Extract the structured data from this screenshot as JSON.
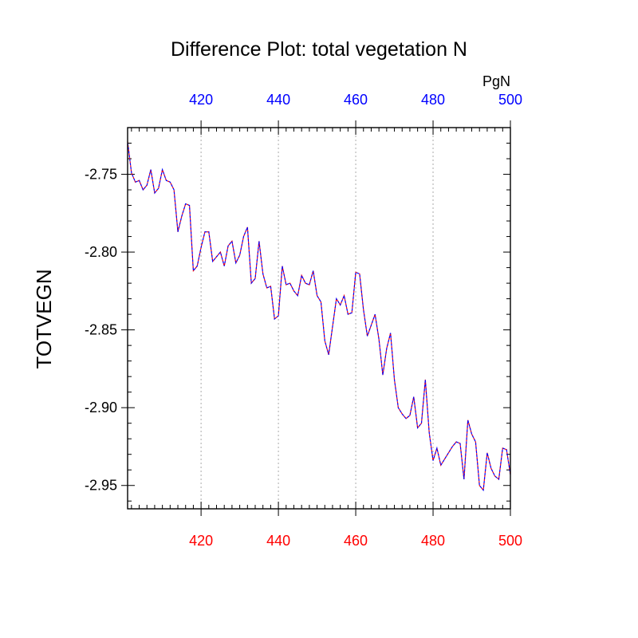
{
  "chart_data": {
    "type": "line",
    "title": "Difference Plot: total vegetation N",
    "units": "PgN",
    "ylabel": "TOTVEGN",
    "xlabel": "",
    "xlim": [
      401,
      500
    ],
    "ylim": [
      -2.965,
      -2.72
    ],
    "x_ticks": [
      420,
      440,
      460,
      480,
      500
    ],
    "y_ticks": [
      -2.75,
      -2.8,
      -2.85,
      -2.9,
      -2.95
    ],
    "y_tick_labels": [
      "-2.75",
      "-2.80",
      "-2.85",
      "-2.90",
      "-2.95"
    ],
    "top_axis_color": "#0000ff",
    "bottom_axis_color": "#ff0000",
    "line_color_a": "#ff0000",
    "line_color_b": "#0000ff",
    "grid": "vertical dotted at major x ticks",
    "series": [
      {
        "x": [
          401,
          402,
          403,
          404,
          405,
          406,
          407,
          408,
          409,
          410,
          411,
          412,
          413,
          414,
          415,
          416,
          417,
          418,
          419,
          420,
          421,
          422,
          423,
          424,
          425,
          426,
          427,
          428,
          429,
          430,
          431,
          432,
          433,
          434,
          435,
          436,
          437,
          438,
          439,
          440,
          441,
          442,
          443,
          444,
          445,
          446,
          447,
          448,
          449,
          450,
          451,
          452,
          453,
          454,
          455,
          456,
          457,
          458,
          459,
          460,
          461,
          462,
          463,
          464,
          465,
          466,
          467,
          468,
          469,
          470,
          471,
          472,
          473,
          474,
          475,
          476,
          477,
          478,
          479,
          480,
          481,
          482,
          483,
          484,
          485,
          486,
          487,
          488,
          489,
          490,
          491,
          492,
          493,
          494,
          495,
          496,
          497,
          498,
          499,
          500
        ],
        "values": [
          -2.729,
          -2.749,
          -2.755,
          -2.754,
          -2.76,
          -2.757,
          -2.747,
          -2.762,
          -2.759,
          -2.747,
          -2.754,
          -2.755,
          -2.76,
          -2.787,
          -2.777,
          -2.769,
          -2.77,
          -2.812,
          -2.809,
          -2.797,
          -2.787,
          -2.787,
          -2.806,
          -2.803,
          -2.8,
          -2.809,
          -2.796,
          -2.793,
          -2.807,
          -2.802,
          -2.79,
          -2.784,
          -2.82,
          -2.817,
          -2.793,
          -2.814,
          -2.823,
          -2.822,
          -2.843,
          -2.841,
          -2.809,
          -2.821,
          -2.82,
          -2.825,
          -2.828,
          -2.815,
          -2.82,
          -2.821,
          -2.812,
          -2.828,
          -2.832,
          -2.857,
          -2.866,
          -2.848,
          -2.83,
          -2.834,
          -2.828,
          -2.84,
          -2.839,
          -2.813,
          -2.814,
          -2.837,
          -2.854,
          -2.847,
          -2.84,
          -2.856,
          -2.879,
          -2.862,
          -2.852,
          -2.882,
          -2.9,
          -2.904,
          -2.907,
          -2.905,
          -2.893,
          -2.913,
          -2.91,
          -2.882,
          -2.916,
          -2.934,
          -2.926,
          -2.937,
          -2.933,
          -2.929,
          -2.925,
          -2.922,
          -2.923,
          -2.946,
          -2.908,
          -2.917,
          -2.922,
          -2.95,
          -2.953,
          -2.929,
          -2.939,
          -2.944,
          -2.946,
          -2.926,
          -2.927,
          -2.943
        ]
      }
    ]
  }
}
